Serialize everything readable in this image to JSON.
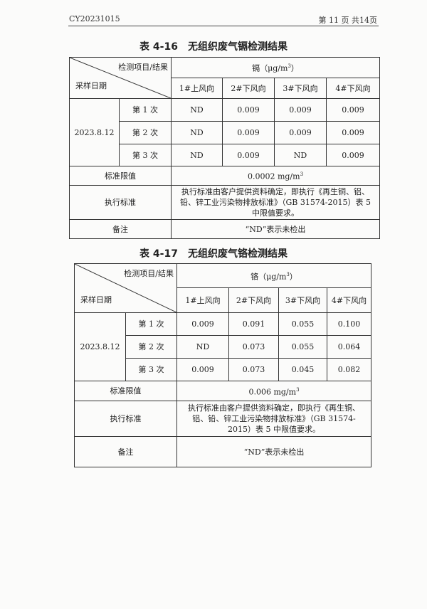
{
  "header": {
    "doc_id": "CY20231015",
    "page": "第 11 页 共14页"
  },
  "tables": [
    {
      "title": "表 4-16　无组织废气镉检测结果",
      "corner_top": "检测项目/结果",
      "corner_bottom": "采样日期",
      "analyte": "镉（μg/m",
      "analyte_sup": "3",
      "analyte_end": "）",
      "columns": [
        "1#上风向",
        "2#下风向",
        "3#下风向",
        "4#下风向"
      ],
      "date": "2023.8.12",
      "rows": [
        {
          "label": "第 1 次",
          "values": [
            "ND",
            "0.009",
            "0.009",
            "0.009"
          ]
        },
        {
          "label": "第 2 次",
          "values": [
            "ND",
            "0.009",
            "0.009",
            "0.009"
          ]
        },
        {
          "label": "第 3 次",
          "values": [
            "ND",
            "0.009",
            "ND",
            "0.009"
          ]
        }
      ],
      "limit_label": "标准限值",
      "limit": "0.0002 mg/m",
      "limit_sup": "3",
      "standard_label": "执行标准",
      "standard": "执行标准由客户提供资料确定，即执行《再生铜、铝、铅、锌工业污染物排放标准》（GB 31574-2015）表 5 中限值要求。",
      "note_label": "备注",
      "note": "“ND”表示未检出"
    },
    {
      "title": "表 4-17　无组织废气铬检测结果",
      "corner_top": "检测项目/结果",
      "corner_bottom": "采样日期",
      "analyte": "铬（μg/m",
      "analyte_sup": "3",
      "analyte_end": "）",
      "columns": [
        "1#上风向",
        "2#下风向",
        "3#下风向",
        "4#下风向"
      ],
      "date": "2023.8.12",
      "rows": [
        {
          "label": "第 1 次",
          "values": [
            "0.009",
            "0.091",
            "0.055",
            "0.100"
          ]
        },
        {
          "label": "第 2 次",
          "values": [
            "ND",
            "0.073",
            "0.055",
            "0.064"
          ]
        },
        {
          "label": "第 3 次",
          "values": [
            "0.009",
            "0.073",
            "0.045",
            "0.082"
          ]
        }
      ],
      "limit_label": "标准限值",
      "limit": "0.006 mg/m",
      "limit_sup": "3",
      "standard_label": "执行标准",
      "standard": "执行标准由客户提供资料确定，即执行《再生铜、铝、铅、锌工业污染物排放标准》（GB 31574-2015）表 5 中限值要求。",
      "note_label": "备注",
      "note": "“ND”表示未检出"
    }
  ]
}
